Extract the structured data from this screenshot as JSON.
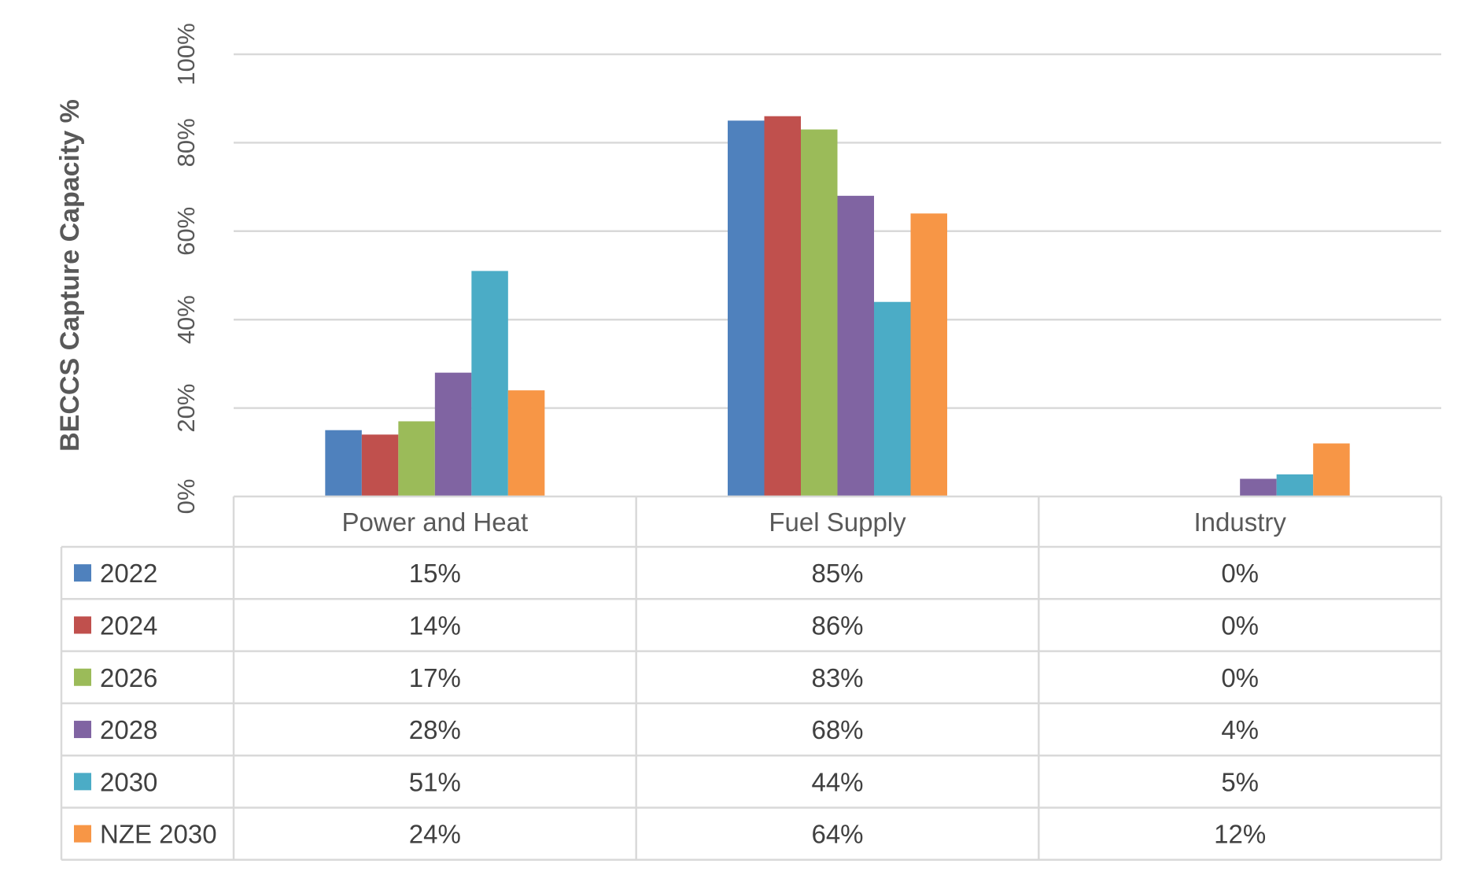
{
  "chart_data": {
    "type": "bar",
    "title": "",
    "xlabel": "",
    "ylabel": "BECCS Capture Capacity %",
    "ylim": [
      0,
      100
    ],
    "yticks": [
      "0%",
      "20%",
      "40%",
      "60%",
      "80%",
      "100%"
    ],
    "grid": true,
    "legend": "data table, left",
    "categories": [
      "Power and Heat",
      "Fuel Supply",
      "Industry"
    ],
    "series": [
      {
        "name": "2022",
        "color": "#4F81BD",
        "values": [
          15,
          85,
          0
        ],
        "labels": [
          "15%",
          "85%",
          "0%"
        ]
      },
      {
        "name": "2024",
        "color": "#C0504D",
        "values": [
          14,
          86,
          0
        ],
        "labels": [
          "14%",
          "86%",
          "0%"
        ]
      },
      {
        "name": "2026",
        "color": "#9BBB59",
        "values": [
          17,
          83,
          0
        ],
        "labels": [
          "17%",
          "83%",
          "0%"
        ]
      },
      {
        "name": "2028",
        "color": "#8064A2",
        "values": [
          28,
          68,
          4
        ],
        "labels": [
          "28%",
          "68%",
          "4%"
        ]
      },
      {
        "name": "2030",
        "color": "#4BACC6",
        "values": [
          51,
          44,
          5
        ],
        "labels": [
          "51%",
          "44%",
          "5%"
        ]
      },
      {
        "name": "NZE 2030",
        "color": "#F79646",
        "values": [
          24,
          64,
          12
        ],
        "labels": [
          "24%",
          "64%",
          "12%"
        ]
      }
    ]
  }
}
